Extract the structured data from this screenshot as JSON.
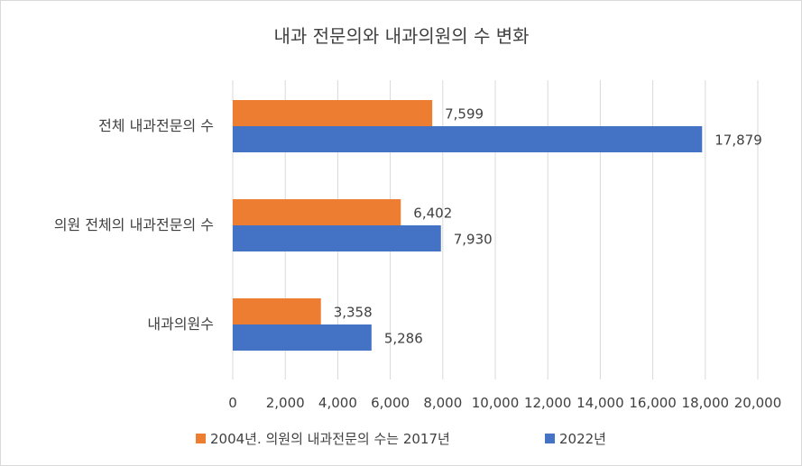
{
  "chart_data": {
    "type": "bar",
    "orientation": "horizontal",
    "title": "내과 전문의와 내과의원의 수 변화",
    "categories": [
      "전체 내과전문의 수",
      "의원 전체의 내과전문의 수",
      "내과의원수"
    ],
    "series": [
      {
        "name": "2004년. 의원의 내과전문의 수는 2017년",
        "color": "#ED7D31",
        "values": [
          7599,
          6402,
          3358
        ],
        "labels": [
          "7,599",
          "6,402",
          "3,358"
        ]
      },
      {
        "name": "2022년",
        "color": "#4472C4",
        "values": [
          17879,
          7930,
          5286
        ],
        "labels": [
          "17,879",
          "7,930",
          "5,286"
        ]
      }
    ],
    "xlim": [
      0,
      20000
    ],
    "xticks": [
      0,
      2000,
      4000,
      6000,
      8000,
      10000,
      12000,
      14000,
      16000,
      18000,
      20000
    ],
    "xtick_labels": [
      "0",
      "2,000",
      "4,000",
      "6,000",
      "8,000",
      "10,000",
      "12,000",
      "14,000",
      "16,000",
      "18,000",
      "20,000"
    ],
    "grid": true,
    "legend_position": "bottom",
    "gridline_color": "#d9d9d9"
  }
}
